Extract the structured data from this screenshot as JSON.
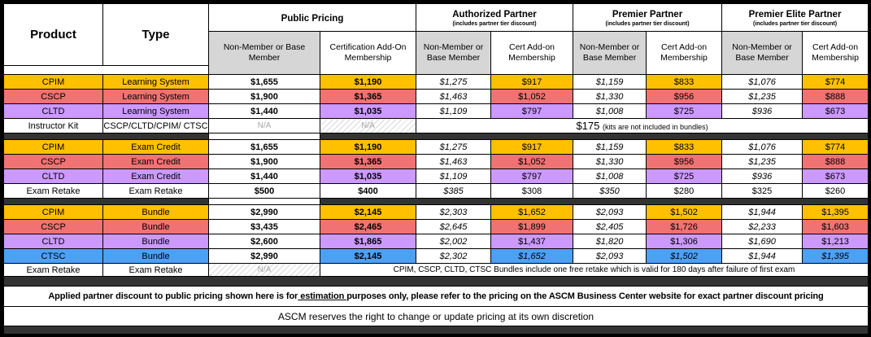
{
  "header": {
    "product": "Product",
    "type": "Type",
    "public": {
      "label": "Public Pricing",
      "col1": "Non-Member or Base Member",
      "col2": "Certification Add-On Membership"
    },
    "authorized": {
      "label": "Authorized Partner",
      "note": "(includes partner tier discount)",
      "col1": "Non-Member or Base Member",
      "col2": "Cert Add-on Membership"
    },
    "premier": {
      "label": "Premier Partner",
      "note": "(includes partner tier discount)",
      "col1": "Non-Member or Base Member",
      "col2": "Cert Add-on Membership"
    },
    "premier_elite": {
      "label": "Premier Elite Partner",
      "note": "(includes partner tier discount)",
      "col1": "Non-Member or Base Member",
      "col2": "Cert Add-on Membership"
    }
  },
  "colors": {
    "orange": "#FFC000",
    "red": "#F07272",
    "purple": "#CC99FF",
    "blue": "#4DA0F5",
    "white": "#FFFFFF",
    "header_gray": "#D6D6D6",
    "separator_dark": "#333333",
    "na_text": "#A6A6A6"
  },
  "rows": [
    {
      "type": "price",
      "product": "CPIM",
      "ptype": "Learning System",
      "color": "orange",
      "values": [
        "$1,655",
        "$1,190",
        "$1,275",
        "$917",
        "$1,159",
        "$833",
        "$1,076",
        "$774"
      ],
      "italics": [
        2,
        4,
        6
      ]
    },
    {
      "type": "price",
      "product": "CSCP",
      "ptype": "Learning System",
      "color": "red",
      "values": [
        "$1,900",
        "$1,365",
        "$1,463",
        "$1,052",
        "$1,330",
        "$956",
        "$1,235",
        "$888"
      ],
      "italics": [
        2,
        4,
        6
      ]
    },
    {
      "type": "price",
      "product": "CLTD",
      "ptype": "Learning System",
      "color": "purple",
      "values": [
        "$1,440",
        "$1,035",
        "$1,109",
        "$797",
        "$1,008",
        "$725",
        "$936",
        "$673"
      ],
      "italics": [
        2,
        4,
        6
      ]
    },
    {
      "type": "kit",
      "product": "Instructor Kit",
      "ptype": "CSCP/CLTD/CPIM/ CTSC",
      "na_plain": "N/A",
      "na_hatch": "N/A",
      "price": "$175",
      "note": "(kits are not included in bundles)"
    },
    {
      "type": "separator"
    },
    {
      "type": "price",
      "product": "CPIM",
      "ptype": "Exam Credit",
      "color": "orange",
      "values": [
        "$1,655",
        "$1,190",
        "$1,275",
        "$917",
        "$1,159",
        "$833",
        "$1,076",
        "$774"
      ],
      "italics": [
        2,
        4,
        6
      ]
    },
    {
      "type": "price",
      "product": "CSCP",
      "ptype": "Exam Credit",
      "color": "red",
      "values": [
        "$1,900",
        "$1,365",
        "$1,463",
        "$1,052",
        "$1,330",
        "$956",
        "$1,235",
        "$888"
      ],
      "italics": [
        2,
        4,
        6
      ]
    },
    {
      "type": "price",
      "product": "CLTD",
      "ptype": "Exam Credit",
      "color": "purple",
      "values": [
        "$1,440",
        "$1,035",
        "$1,109",
        "$797",
        "$1,008",
        "$725",
        "$936",
        "$673"
      ],
      "italics": [
        2,
        4,
        6
      ]
    },
    {
      "type": "price",
      "product": "Exam Retake",
      "ptype": "Exam Retake",
      "color": "white",
      "values": [
        "$500",
        "$400",
        "$385",
        "$308",
        "$350",
        "$280",
        "$325",
        "$260"
      ],
      "italics": [
        2,
        4
      ]
    },
    {
      "type": "separator"
    },
    {
      "type": "price",
      "product": "CPIM",
      "ptype": "Bundle",
      "color": "orange",
      "values": [
        "$2,990",
        "$2,145",
        "$2,303",
        "$1,652",
        "$2,093",
        "$1,502",
        "$1,944",
        "$1,395"
      ],
      "italics": [
        2,
        4,
        6
      ]
    },
    {
      "type": "price",
      "product": "CSCP",
      "ptype": "Bundle",
      "color": "red",
      "values": [
        "$3,435",
        "$2,465",
        "$2,645",
        "$1,899",
        "$2,405",
        "$1,726",
        "$2,233",
        "$1,603"
      ],
      "italics": [
        2,
        4,
        6
      ]
    },
    {
      "type": "price",
      "product": "CLTD",
      "ptype": "Bundle",
      "color": "purple",
      "values": [
        "$2,600",
        "$1,865",
        "$2,002",
        "$1,437",
        "$1,820",
        "$1,306",
        "$1,690",
        "$1,213"
      ],
      "italics": [
        2,
        4,
        6
      ]
    },
    {
      "type": "price",
      "product": "CTSC",
      "ptype": "Bundle",
      "color": "blue",
      "values": [
        "$2,990",
        "$2,145",
        "$2,302",
        "$1,652",
        "$2,093",
        "$1,502",
        "$1,944",
        "$1,395"
      ],
      "italics": [
        2,
        3,
        4,
        5,
        6,
        7
      ]
    },
    {
      "type": "bundle_retake",
      "product": "Exam Retake",
      "ptype": "Exam Retake",
      "na_hatch": "N/A",
      "note": "CPIM, CSCP, CLTD, CTSC Bundles include one free retake which is valid for 180 days after failure of first exam"
    }
  ],
  "footer": {
    "line1_pre": "Applied partner discount to public pricing shown here is for",
    "line1_underline": " estimation ",
    "line1_post": "purposes only, please refer to the pricing on the ASCM Business Center website for exact partner discount pricing",
    "line2": "ASCM reserves the right to change or update pricing at its own discretion"
  }
}
